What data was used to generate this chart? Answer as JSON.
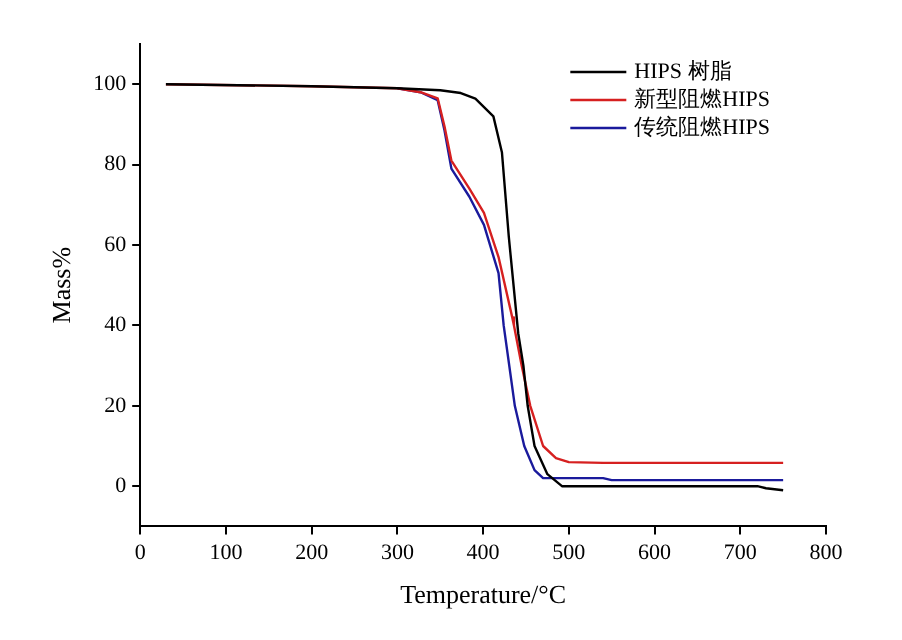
{
  "chart_data": {
    "type": "line",
    "xlabel": "Temperature/°C",
    "ylabel": "Mass%",
    "xlim": [
      0,
      800
    ],
    "xticks": [
      0,
      100,
      200,
      300,
      400,
      500,
      600,
      700,
      800
    ],
    "ylim": [
      -10,
      110
    ],
    "yticks": [
      0,
      20,
      40,
      60,
      80,
      100
    ],
    "grid": false,
    "legend": "top right",
    "marker": "none",
    "line_style": "solid",
    "series": [
      {
        "name": "HIPS 树脂",
        "color": "#000000",
        "x": [
          30,
          200,
          300,
          350,
          374,
          391,
          412,
          422,
          430,
          441,
          447,
          452,
          460,
          475,
          492,
          600,
          720,
          730,
          750
        ],
        "values": [
          100,
          99.5,
          99,
          98.5,
          97.8,
          96.4,
          92,
          83,
          62,
          38,
          30,
          20,
          10,
          3,
          0,
          0,
          0,
          -0.5,
          -1
        ]
      },
      {
        "name": "新型阻燃HIPS",
        "color": "#d62020",
        "x": [
          30,
          200,
          300,
          327,
          347,
          355,
          363,
          384,
          401,
          418,
          434,
          436,
          445,
          455,
          470,
          485,
          500,
          540,
          750
        ],
        "values": [
          100,
          99.5,
          99,
          98,
          96.5,
          89.5,
          81,
          74,
          68,
          57,
          42,
          40,
          30,
          20,
          10,
          7,
          6,
          5.8,
          5.8
        ]
      },
      {
        "name": "传统阻燃HIPS",
        "color": "#1a1a9c",
        "x": [
          300,
          327,
          347,
          355,
          363,
          384,
          401,
          418,
          424,
          437,
          448,
          460,
          470,
          540,
          550,
          750
        ],
        "values": [
          99,
          98,
          96,
          88.5,
          79,
          72,
          65,
          53,
          40,
          20,
          10,
          4,
          2,
          2,
          1.5,
          1.5
        ]
      }
    ]
  }
}
